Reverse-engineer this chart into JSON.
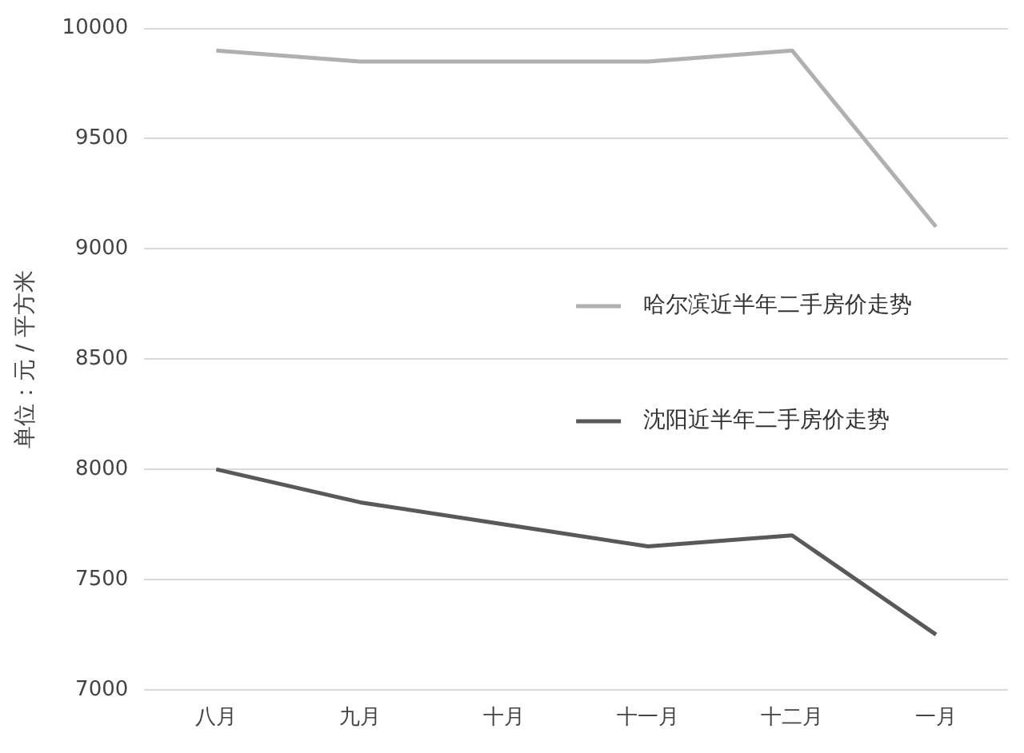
{
  "chart_data": {
    "type": "line",
    "ylabel": "单位：元 / 平方米",
    "categories": [
      "八月",
      "九月",
      "十月",
      "十一月",
      "十二月",
      "一月"
    ],
    "series": [
      {
        "name": "哈尔滨近半年二手房价走势",
        "color": "#b0b0b0",
        "values": [
          9900,
          9850,
          9850,
          9850,
          9900,
          9100
        ]
      },
      {
        "name": "沈阳近半年二手房价走势",
        "color": "#595959",
        "values": [
          8000,
          7850,
          7750,
          7650,
          7700,
          7250
        ]
      }
    ],
    "ylim": [
      7000,
      10000
    ],
    "yticks": [
      7000,
      7500,
      8000,
      8500,
      9000,
      9500,
      10000
    ],
    "grid": "y",
    "legend": "right",
    "marker": "none",
    "line_style": "solid"
  }
}
